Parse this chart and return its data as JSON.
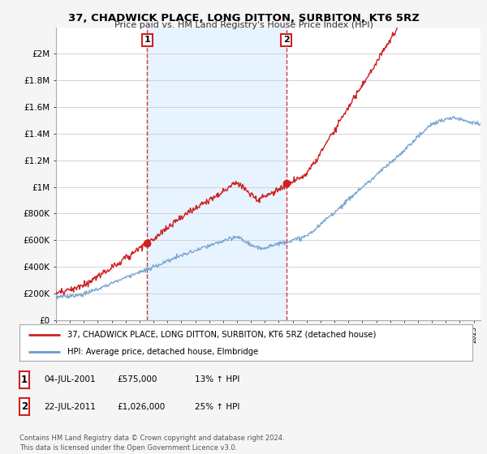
{
  "title": "37, CHADWICK PLACE, LONG DITTON, SURBITON, KT6 5RZ",
  "subtitle": "Price paid vs. HM Land Registry's House Price Index (HPI)",
  "legend_line1": "37, CHADWICK PLACE, LONG DITTON, SURBITON, KT6 5RZ (detached house)",
  "legend_line2": "HPI: Average price, detached house, Elmbridge",
  "annotation1_date": "04-JUL-2001",
  "annotation1_price": "£575,000",
  "annotation1_hpi": "13% ↑ HPI",
  "annotation1_year": 2001.54,
  "annotation1_value": 575000,
  "annotation2_date": "22-JUL-2011",
  "annotation2_price": "£1,026,000",
  "annotation2_hpi": "25% ↑ HPI",
  "annotation2_year": 2011.54,
  "annotation2_value": 1026000,
  "footer": "Contains HM Land Registry data © Crown copyright and database right 2024.\nThis data is licensed under the Open Government Licence v3.0.",
  "price_color": "#cc2222",
  "hpi_color": "#6699cc",
  "vline_color": "#cc2222",
  "shade_color": "#ddeeff",
  "ylim": [
    0,
    2200000
  ],
  "yticks": [
    0,
    200000,
    400000,
    600000,
    800000,
    1000000,
    1200000,
    1400000,
    1600000,
    1800000,
    2000000
  ],
  "ytick_labels": [
    "£0",
    "£200K",
    "£400K",
    "£600K",
    "£800K",
    "£1M",
    "£1.2M",
    "£1.4M",
    "£1.6M",
    "£1.8M",
    "£2M"
  ],
  "background_color": "#f5f5f5",
  "plot_bg": "#ffffff",
  "grid_color": "#cccccc",
  "xmin": 1995,
  "xmax": 2025.5
}
